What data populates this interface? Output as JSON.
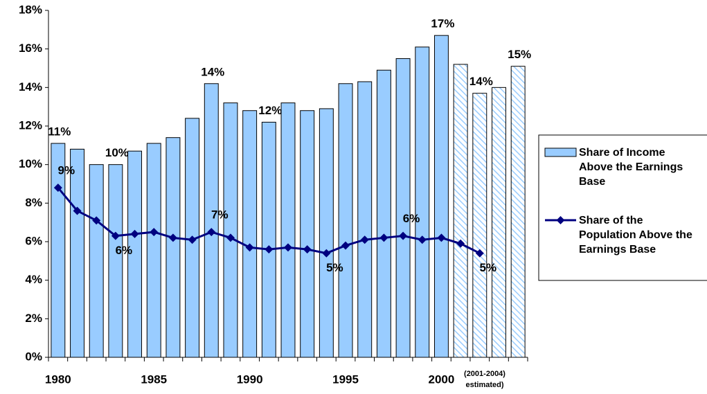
{
  "chart_data": {
    "type": "bar_line",
    "categories": [
      "1980",
      null,
      null,
      null,
      null,
      "1985",
      null,
      null,
      null,
      null,
      "1990",
      null,
      null,
      null,
      null,
      "1995",
      null,
      null,
      null,
      null,
      "2000",
      null,
      null,
      null,
      null
    ],
    "annotations": [
      "(2001-2004)",
      "estimated)"
    ],
    "series": [
      {
        "name": "Share of Income Above the Earnings Base",
        "type": "bar",
        "color": "#99ccff",
        "values": [
          11.1,
          10.8,
          10.0,
          10.0,
          10.7,
          11.1,
          11.4,
          12.4,
          14.2,
          13.2,
          12.8,
          12.2,
          13.2,
          12.8,
          12.9,
          14.2,
          14.3,
          14.9,
          15.5,
          16.1,
          16.7,
          15.2,
          13.7,
          14.0,
          15.1
        ],
        "value_labels": [
          "11%",
          null,
          null,
          "10%",
          null,
          null,
          null,
          null,
          "14%",
          null,
          null,
          "12%",
          null,
          null,
          null,
          null,
          null,
          null,
          null,
          null,
          "17%",
          null,
          "14%",
          null,
          "15%"
        ],
        "hatched": [
          false,
          false,
          false,
          false,
          false,
          false,
          false,
          false,
          false,
          false,
          false,
          false,
          false,
          false,
          false,
          false,
          false,
          false,
          false,
          false,
          false,
          true,
          true,
          true,
          true
        ]
      },
      {
        "name": "Share of the Population Above the Earnings Base",
        "type": "line",
        "color": "#000080",
        "values": [
          8.8,
          7.6,
          7.1,
          6.3,
          6.4,
          6.5,
          6.2,
          6.1,
          6.5,
          6.2,
          5.7,
          5.6,
          5.7,
          5.6,
          5.4,
          5.8,
          6.1,
          6.2,
          6.3,
          6.1,
          6.2,
          5.9,
          5.4,
          null,
          null
        ],
        "value_labels": [
          "9%",
          null,
          null,
          "6%",
          null,
          null,
          null,
          null,
          "7%",
          null,
          null,
          null,
          null,
          null,
          "5%",
          null,
          null,
          null,
          "6%",
          null,
          null,
          null,
          "5%",
          null,
          null
        ]
      }
    ],
    "ylim": [
      0,
      18
    ],
    "yticks": [
      {
        "value": 0,
        "label": "0%"
      },
      {
        "value": 2,
        "label": "2%"
      },
      {
        "value": 4,
        "label": "4%"
      },
      {
        "value": 6,
        "label": "6%"
      },
      {
        "value": 8,
        "label": "8%"
      },
      {
        "value": 10,
        "label": "10%"
      },
      {
        "value": 12,
        "label": "12%"
      },
      {
        "value": 14,
        "label": "14%"
      },
      {
        "value": 16,
        "label": "16%"
      },
      {
        "value": 18,
        "label": "18%"
      }
    ],
    "grid": false,
    "legend": "right"
  }
}
